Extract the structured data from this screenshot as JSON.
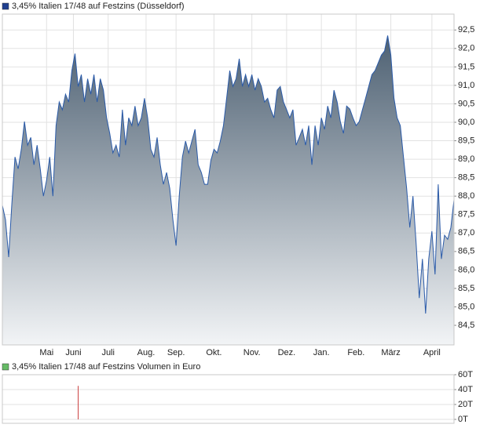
{
  "chart_data": [
    {
      "type": "area",
      "title": "3,45% Italien 17/48 auf Festzins (Düsseldorf)",
      "legend_color": "#1f3f8f",
      "color": "#2a5aa8",
      "fill_top": "#4d6072",
      "fill_bottom": "#f2f4f6",
      "grid": true,
      "xlim": [
        0,
        143
      ],
      "xticks": [
        {
          "value": 14,
          "label": "Mai"
        },
        {
          "value": 22.5,
          "label": "Juni"
        },
        {
          "value": 33.5,
          "label": "Juli"
        },
        {
          "value": 45.5,
          "label": "Aug."
        },
        {
          "value": 55,
          "label": "Sep."
        },
        {
          "value": 67,
          "label": "Okt."
        },
        {
          "value": 79,
          "label": "Nov."
        },
        {
          "value": 90,
          "label": "Dez."
        },
        {
          "value": 101,
          "label": "Jan."
        },
        {
          "value": 112,
          "label": "Feb."
        },
        {
          "value": 123,
          "label": "März"
        },
        {
          "value": 136,
          "label": "April"
        }
      ],
      "ylim": [
        83.97,
        92.93
      ],
      "yticks": [
        {
          "value": 84.5,
          "label": "84,5"
        },
        {
          "value": 85,
          "label": "85,0"
        },
        {
          "value": 85.5,
          "label": "85,5"
        },
        {
          "value": 86,
          "label": "86,0"
        },
        {
          "value": 86.5,
          "label": "86,5"
        },
        {
          "value": 87,
          "label": "87,0"
        },
        {
          "value": 87.5,
          "label": "87,5"
        },
        {
          "value": 88,
          "label": "88,0"
        },
        {
          "value": 88.5,
          "label": "88,5"
        },
        {
          "value": 89,
          "label": "89,0"
        },
        {
          "value": 89.5,
          "label": "89,5"
        },
        {
          "value": 90,
          "label": "90,0"
        },
        {
          "value": 90.5,
          "label": "90,5"
        },
        {
          "value": 91,
          "label": "91,0"
        },
        {
          "value": 91.5,
          "label": "91,5"
        },
        {
          "value": 92,
          "label": "92,0"
        },
        {
          "value": 92.5,
          "label": "92,5"
        }
      ],
      "values": [
        87.75,
        87.36,
        86.35,
        87.79,
        89.06,
        88.74,
        89.27,
        90.02,
        89.38,
        89.59,
        88.85,
        89.38,
        88.74,
        88.0,
        88.43,
        89.06,
        88.0,
        89.91,
        90.55,
        90.34,
        90.76,
        90.55,
        91.4,
        91.86,
        90.97,
        91.29,
        90.55,
        91.18,
        90.76,
        91.29,
        90.55,
        91.18,
        90.87,
        90.12,
        89.7,
        89.17,
        89.38,
        89.06,
        90.34,
        89.38,
        90.12,
        89.91,
        90.44,
        89.91,
        90.12,
        90.65,
        90.12,
        89.27,
        89.06,
        89.59,
        88.85,
        88.32,
        88.64,
        88.21,
        87.36,
        86.66,
        88.0,
        89.06,
        89.49,
        89.17,
        89.49,
        89.81,
        88.85,
        88.64,
        88.32,
        88.32,
        88.96,
        89.27,
        89.17,
        89.49,
        89.91,
        90.65,
        91.4,
        90.97,
        91.18,
        91.72,
        90.97,
        91.29,
        90.97,
        91.29,
        90.87,
        91.18,
        90.97,
        90.55,
        90.65,
        90.34,
        90.12,
        90.87,
        90.97,
        90.55,
        90.34,
        90.12,
        90.34,
        89.38,
        89.59,
        89.81,
        89.38,
        89.91,
        88.85,
        89.91,
        89.38,
        90.12,
        89.81,
        90.44,
        90.12,
        90.87,
        90.55,
        90.02,
        89.7,
        90.44,
        90.36,
        90.12,
        89.91,
        90.02,
        90.34,
        90.65,
        90.97,
        91.29,
        91.4,
        91.61,
        91.82,
        91.93,
        92.35,
        91.82,
        90.65,
        90.12,
        89.91,
        89.06,
        88.21,
        87.15,
        88.0,
        86.73,
        85.24,
        86.3,
        84.82,
        86.3,
        87.05,
        85.88,
        88.32,
        86.3,
        86.94,
        86.83,
        87.15,
        87.9
      ]
    },
    {
      "type": "bar",
      "title": "3,45% Italien 17/48 auf Festzins Volumen in Euro",
      "legend_color": "#66bb66",
      "color": "#cc4444",
      "grid": true,
      "xlim": [
        0,
        143
      ],
      "ylim": [
        0,
        60
      ],
      "yticks": [
        {
          "value": 0,
          "label": "0T"
        },
        {
          "value": 20,
          "label": "20T"
        },
        {
          "value": 40,
          "label": "40T"
        },
        {
          "value": 60,
          "label": "60T"
        }
      ],
      "values": [
        0,
        0,
        0,
        0,
        0,
        0,
        0,
        0,
        0,
        0,
        0,
        0,
        0,
        0,
        0,
        0,
        0,
        0,
        0,
        0,
        0,
        0,
        0,
        0,
        45,
        0,
        0,
        0,
        0,
        0,
        0,
        0,
        0,
        0,
        0,
        0,
        0,
        0,
        0,
        0,
        0,
        0,
        0,
        0,
        0,
        0,
        0,
        0,
        0,
        0,
        0,
        0,
        0,
        0,
        0,
        0,
        0,
        0,
        0,
        0,
        0,
        0,
        0,
        0,
        0,
        0,
        0,
        0,
        0,
        0,
        0,
        0,
        0,
        0,
        0,
        0,
        0,
        0,
        0,
        0,
        0,
        0,
        0,
        0,
        0,
        0,
        0,
        0,
        0,
        0,
        0,
        0,
        0,
        0,
        0,
        0,
        0,
        0,
        0,
        0,
        0,
        0,
        0,
        0,
        0,
        0,
        0,
        0,
        0,
        0,
        0,
        0,
        0,
        0,
        0,
        0,
        0,
        0,
        0,
        0,
        0,
        0,
        0,
        0,
        0,
        0,
        0,
        0,
        0,
        0,
        0,
        0,
        0,
        0,
        0,
        0,
        0,
        0,
        0,
        0,
        0,
        0,
        0,
        0
      ]
    }
  ]
}
